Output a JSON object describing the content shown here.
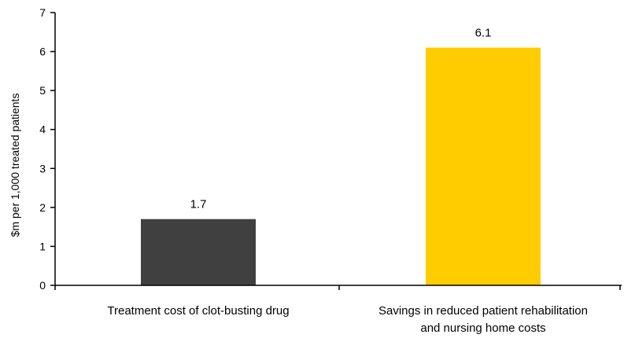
{
  "chart_data": {
    "type": "bar",
    "title": "",
    "xlabel": "",
    "ylabel": "$m per 1,000 treated patients",
    "ylim": [
      0,
      7
    ],
    "yticks": [
      0,
      1,
      2,
      3,
      4,
      5,
      6,
      7
    ],
    "grid": false,
    "legend": "none",
    "categories": [
      [
        "Treatment cost of clot-busting drug"
      ],
      [
        "Savings in reduced patient rehabilitation",
        "and nursing home costs"
      ]
    ],
    "values": [
      1.7,
      6.1
    ],
    "value_labels": [
      "1.7",
      "6.1"
    ],
    "colors": [
      "#404040",
      "#ffcc00"
    ]
  }
}
